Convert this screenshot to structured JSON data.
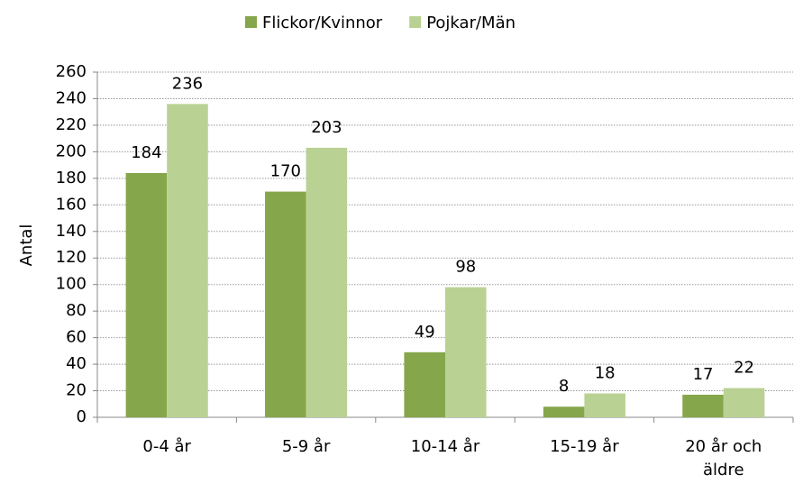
{
  "chart_data": {
    "type": "bar",
    "y_label": "Antal",
    "categories": [
      "0-4 år",
      "5-9 år",
      "10-14 år",
      "15-19 år",
      "20 år och äldre"
    ],
    "series": [
      {
        "name": "Flickor/Kvinnor",
        "color": "#86a64b",
        "values": [
          184,
          170,
          49,
          8,
          17
        ]
      },
      {
        "name": "Pojkar/Män",
        "color": "#b9d193",
        "values": [
          236,
          203,
          98,
          18,
          22
        ]
      }
    ],
    "ylim": [
      0,
      260
    ],
    "yticks": [
      0,
      20,
      40,
      60,
      80,
      100,
      120,
      140,
      160,
      180,
      200,
      220,
      240,
      260
    ],
    "grid": true,
    "legend": "top"
  }
}
